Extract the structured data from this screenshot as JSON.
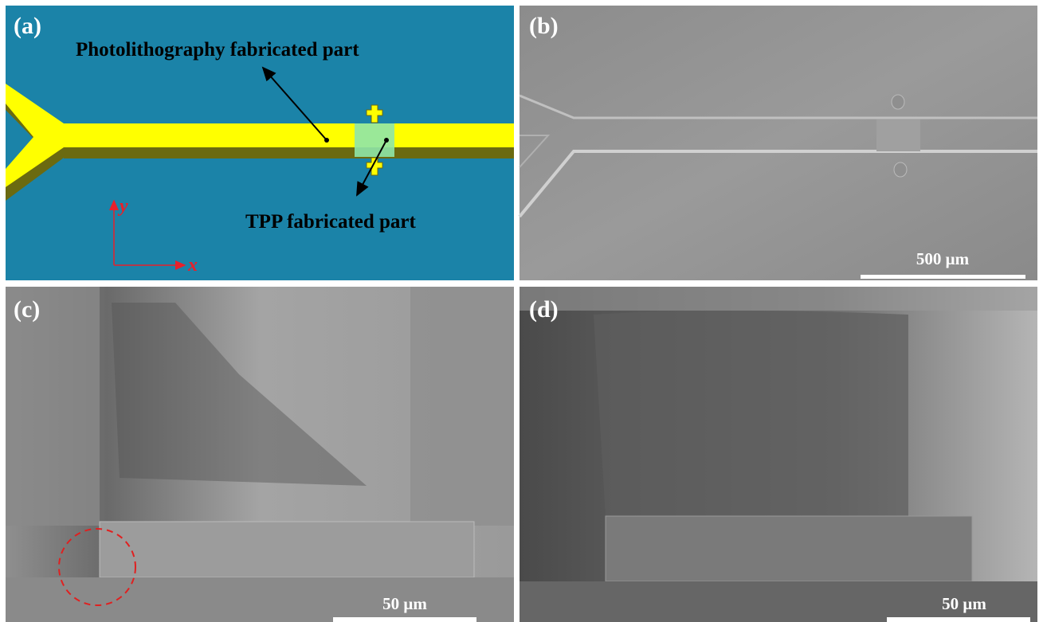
{
  "panels": [
    {
      "label": "(a)",
      "annotations": [
        "Photolithography fabricated part",
        "TPP fabricated part"
      ],
      "axes": [
        "y",
        "x"
      ]
    },
    {
      "label": "(b)",
      "scale_bar": "500 μm"
    },
    {
      "label": "(c)",
      "scale_bar": "50 μm"
    },
    {
      "label": "(d)",
      "scale_bar": "50 μm"
    }
  ]
}
